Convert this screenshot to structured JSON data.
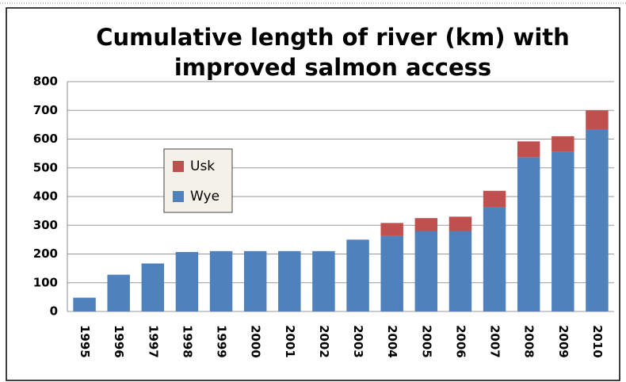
{
  "chart_data": {
    "type": "bar",
    "stacked": true,
    "title": "Cumulative length of river (km) with improved salmon access",
    "categories": [
      "1995",
      "1996",
      "1997",
      "1998",
      "1999",
      "2000",
      "2001",
      "2002",
      "2003",
      "2004",
      "2005",
      "2006",
      "2007",
      "2008",
      "2009",
      "2010"
    ],
    "series": [
      {
        "name": "Wye",
        "color": "#4f81bd",
        "values": [
          48,
          128,
          167,
          207,
          210,
          210,
          210,
          210,
          250,
          263,
          280,
          280,
          363,
          537,
          555,
          632
        ]
      },
      {
        "name": "Usk",
        "color": "#c0504d",
        "values": [
          0,
          0,
          0,
          0,
          0,
          0,
          0,
          0,
          0,
          45,
          45,
          50,
          57,
          55,
          55,
          68
        ]
      }
    ],
    "ylim": [
      0,
      800
    ],
    "yticks": [
      0,
      100,
      200,
      300,
      400,
      500,
      600,
      700,
      800
    ],
    "grid": true
  }
}
